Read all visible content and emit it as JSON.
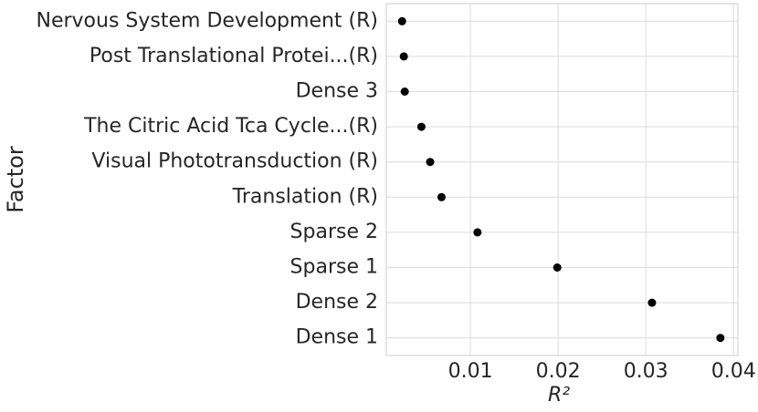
{
  "chart_data": {
    "type": "dot",
    "xlabel": "R²",
    "ylabel": "Factor",
    "categories": [
      "Nervous System Development (R)",
      "Post Translational Protei...(R)",
      "Dense 3",
      "The Citric Acid Tca Cycle...(R)",
      "Visual Phototransduction (R)",
      "Translation (R)",
      "Sparse 2",
      "Sparse 1",
      "Dense 2",
      "Dense 1"
    ],
    "values": [
      0.0022,
      0.0024,
      0.0025,
      0.0044,
      0.0054,
      0.0067,
      0.0108,
      0.0199,
      0.0307,
      0.0385
    ],
    "color": "#000000",
    "xlim": [
      0.0004,
      0.0405
    ],
    "xticks": [
      0.01,
      0.02,
      0.03,
      0.04
    ],
    "grid": true
  }
}
